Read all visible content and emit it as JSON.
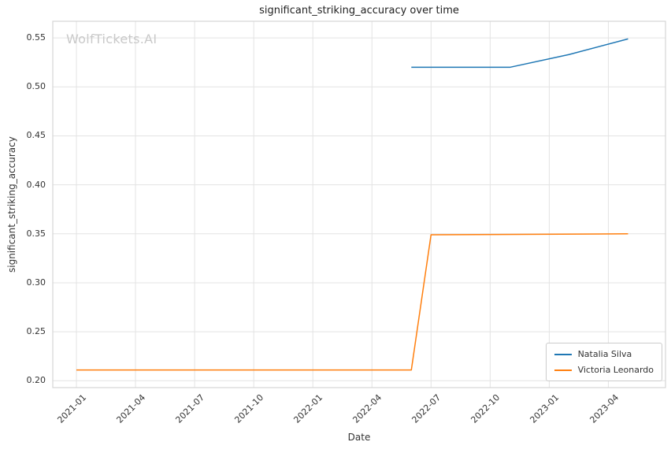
{
  "chart_data": {
    "type": "line",
    "title": "significant_striking_accuracy over time",
    "xlabel": "Date",
    "ylabel": "significant_striking_accuracy",
    "watermark": "WolfTickets.AI",
    "x_ticks": [
      "2021-01",
      "2021-04",
      "2021-07",
      "2021-10",
      "2022-01",
      "2022-04",
      "2022-07",
      "2022-10",
      "2023-01",
      "2023-04"
    ],
    "y_ticks": [
      "0.20",
      "0.25",
      "0.30",
      "0.35",
      "0.40",
      "0.45",
      "0.50",
      "0.55"
    ],
    "xlim_months": [
      -1.2,
      29.9
    ],
    "ylim": [
      0.193,
      0.567
    ],
    "grid": true,
    "legend_position": "lower right",
    "colors": {
      "grid": "#e3e3e3",
      "spine": "#d5d5d5",
      "text": "#333333",
      "watermark": "#c9c9c9"
    },
    "series": [
      {
        "name": "Natalia Silva",
        "color": "#1f77b4",
        "points": [
          [
            "2022-06",
            0.52
          ],
          [
            "2022-11",
            0.52
          ],
          [
            "2023-02",
            0.533
          ],
          [
            "2023-05",
            0.549
          ]
        ]
      },
      {
        "name": "Victoria Leonardo",
        "color": "#ff7f0e",
        "points": [
          [
            "2021-01",
            0.211
          ],
          [
            "2022-06",
            0.211
          ],
          [
            "2022-07",
            0.349
          ],
          [
            "2023-05",
            0.35
          ]
        ]
      }
    ]
  }
}
